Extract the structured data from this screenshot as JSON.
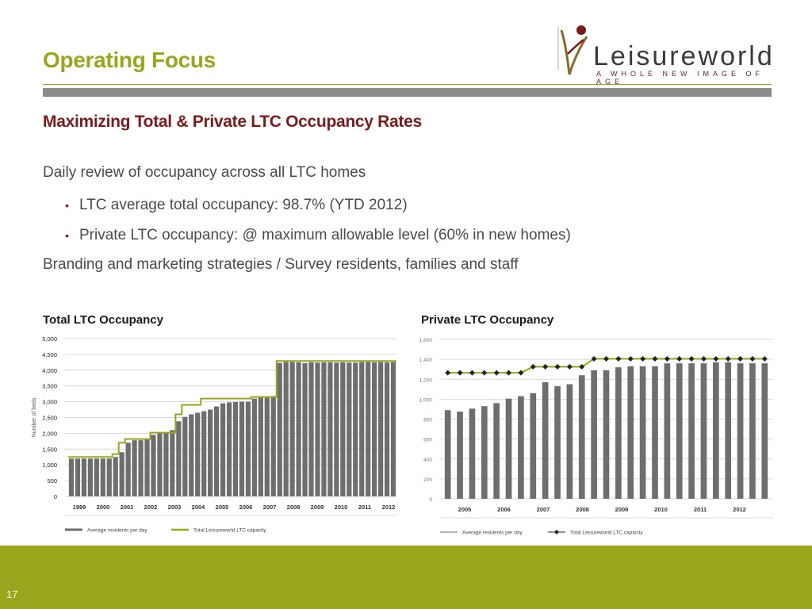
{
  "slide": {
    "title": "Operating Focus",
    "subtitle": "Maximizing Total & Private LTC Occupancy Rates",
    "page_number": "17"
  },
  "logo": {
    "name": "Leisureworld",
    "tagline": "A WHOLE NEW IMAGE OF AGE"
  },
  "content": {
    "line1": "Daily review of occupancy across all LTC homes",
    "bullet1": "LTC average total occupancy: 98.7% (YTD 2012)",
    "bullet2": "Private LTC occupancy: @ maximum allowable level (60% in new homes)",
    "line2": "Branding and marketing strategies / Survey residents, families and staff"
  },
  "colors": {
    "accent": "#9aa61c",
    "maroon": "#7d1a1a",
    "bar": "#6e6e6e",
    "capacity_line": "#9aa61c"
  },
  "chart_data": [
    {
      "type": "bar",
      "title": "Total LTC Occupancy",
      "ylabel": "Number of beds",
      "ylim": [
        0,
        5000
      ],
      "yticks": [
        0,
        500,
        1000,
        1500,
        2000,
        2500,
        3000,
        3500,
        4000,
        4500,
        5000
      ],
      "ytick_labels": [
        "0",
        "500",
        "1,000",
        "1,500",
        "2,000",
        "2,500",
        "3,000",
        "3,500",
        "4,000",
        "4,500",
        "5,000"
      ],
      "year_labels": [
        "1999",
        "2000",
        "2001",
        "2002",
        "2003",
        "2004",
        "2005",
        "2006",
        "2007",
        "2008",
        "2009",
        "2010",
        "2011",
        "2012"
      ],
      "series": [
        {
          "name": "Average residents per day",
          "values": [
            1200,
            1200,
            1200,
            1200,
            1200,
            1200,
            1200,
            1250,
            1400,
            1700,
            1780,
            1780,
            1800,
            1950,
            2000,
            2000,
            2100,
            2380,
            2520,
            2600,
            2650,
            2700,
            2750,
            2850,
            2950,
            2980,
            2990,
            3000,
            3000,
            3100,
            3150,
            3150,
            3180,
            4230,
            4260,
            4260,
            4250,
            4220,
            4250,
            4240,
            4250,
            4250,
            4240,
            4250,
            4240,
            4240,
            4260,
            4260,
            4250,
            4260,
            4250,
            4260
          ]
        },
        {
          "name": "Total Leisureworld LTC capacity",
          "values": [
            1250,
            1250,
            1250,
            1250,
            1250,
            1250,
            1250,
            1340,
            1700,
            1820,
            1820,
            1820,
            1820,
            2020,
            2020,
            2020,
            2020,
            2600,
            2900,
            2900,
            2900,
            3100,
            3100,
            3100,
            3100,
            3100,
            3100,
            3100,
            3100,
            3150,
            3150,
            3150,
            3150,
            4290,
            4290,
            4290,
            4290,
            4290,
            4290,
            4290,
            4290,
            4290,
            4290,
            4290,
            4290,
            4290,
            4290,
            4290,
            4290,
            4290,
            4290,
            4290
          ]
        }
      ]
    },
    {
      "type": "bar",
      "title": "Private LTC Occupancy",
      "ylim": [
        0,
        1600
      ],
      "yticks": [
        0,
        200,
        400,
        600,
        800,
        1000,
        1200,
        1400,
        1600
      ],
      "ytick_labels": [
        "0",
        "200",
        "400",
        "600",
        "800",
        "1,000",
        "1,200",
        "1,400",
        "1,600"
      ],
      "year_labels": [
        "2005",
        "2006",
        "2007",
        "2008",
        "2009",
        "2010",
        "2011",
        "2012"
      ],
      "series": [
        {
          "name": "Average residents per day",
          "values": [
            890,
            875,
            905,
            930,
            960,
            1005,
            1030,
            1060,
            1170,
            1130,
            1150,
            1240,
            1290,
            1290,
            1320,
            1330,
            1330,
            1330,
            1360,
            1360,
            1360,
            1360,
            1370,
            1370,
            1360,
            1360,
            1360
          ]
        },
        {
          "name": "Total Leisureworld LTC capacity",
          "values": [
            1265,
            1265,
            1265,
            1265,
            1265,
            1265,
            1265,
            1325,
            1325,
            1325,
            1325,
            1325,
            1405,
            1405,
            1405,
            1405,
            1405,
            1405,
            1405,
            1405,
            1405,
            1405,
            1405,
            1405,
            1405,
            1405,
            1405
          ]
        }
      ]
    }
  ]
}
